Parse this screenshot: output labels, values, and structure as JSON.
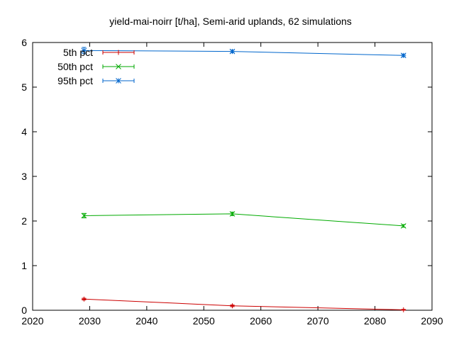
{
  "chart_data": {
    "type": "line",
    "title": "yield-mai-noirr [t/ha], Semi-arid uplands, 62 simulations",
    "xlabel": "",
    "ylabel": "",
    "xlim": [
      2020,
      2090
    ],
    "ylim": [
      0,
      6
    ],
    "xticks": [
      2020,
      2030,
      2040,
      2050,
      2060,
      2070,
      2080,
      2090
    ],
    "yticks": [
      0,
      1,
      2,
      3,
      4,
      5,
      6
    ],
    "grid": false,
    "legend_position": "top-left",
    "series": [
      {
        "name": "5th pct",
        "color": "#cc0000",
        "marker": "plus",
        "x": [
          2029,
          2055,
          2085
        ],
        "y": [
          0.25,
          0.1,
          0.01
        ],
        "err": [
          0.02,
          0.02,
          0.01
        ]
      },
      {
        "name": "50th pct",
        "color": "#00aa00",
        "marker": "cross",
        "x": [
          2029,
          2055,
          2085
        ],
        "y": [
          2.12,
          2.16,
          1.89
        ],
        "err": [
          0.05,
          0.04,
          0.03
        ]
      },
      {
        "name": "95th pct",
        "color": "#0066cc",
        "marker": "star",
        "x": [
          2029,
          2055,
          2085
        ],
        "y": [
          5.82,
          5.8,
          5.71
        ],
        "err": [
          0.07,
          0.03,
          0.03
        ]
      }
    ]
  }
}
